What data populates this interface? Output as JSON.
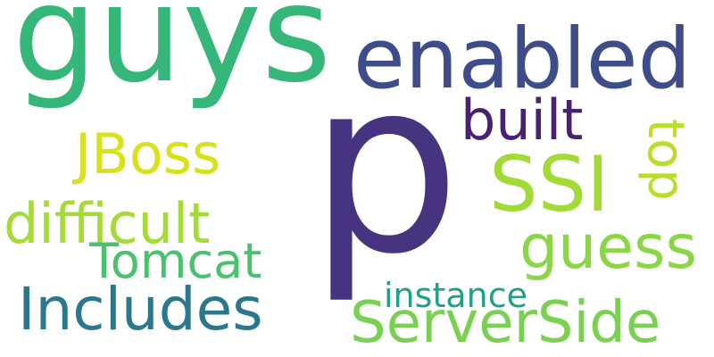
{
  "words": {
    "guys": {
      "text": "guys",
      "color": "#35b779"
    },
    "enabled": {
      "text": "enabled",
      "color": "#3e4c8a"
    },
    "p": {
      "text": "p",
      "color": "#463480"
    },
    "built": {
      "text": "built",
      "color": "#482173"
    },
    "jboss": {
      "text": "JBoss",
      "color": "#d8e219"
    },
    "ssi": {
      "text": "SSI",
      "color": "#a2da37"
    },
    "top": {
      "text": "top",
      "color": "#b8de29"
    },
    "difficult": {
      "text": "difficult",
      "color": "#a5db36"
    },
    "guess": {
      "text": "guess",
      "color": "#8bd646"
    },
    "tomcat": {
      "text": "Tomcat",
      "color": "#4ac16d"
    },
    "includes": {
      "text": "Includes",
      "color": "#2a788e"
    },
    "instance": {
      "text": "instance",
      "color": "#1fa187"
    },
    "serverside": {
      "text": "ServerSide",
      "color": "#7ad151"
    }
  }
}
